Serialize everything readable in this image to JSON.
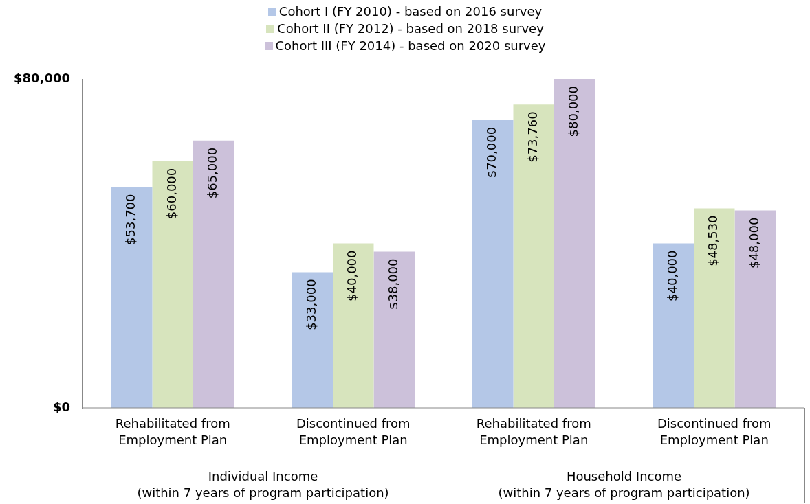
{
  "chart_data": {
    "type": "bar",
    "categories": [
      "Rehabilitated from Employment Plan",
      "Discontinued from Employment Plan",
      "Rehabilitated from Employment Plan",
      "Discontinued from Employment Plan"
    ],
    "series": [
      {
        "name": "Cohort I (FY 2010) - based on 2016 survey",
        "color": "#b4c7e7",
        "values": [
          53700,
          33000,
          70000,
          40000
        ],
        "value_labels": [
          "$53,700",
          "$33,000",
          "$70,000",
          "$40,000"
        ]
      },
      {
        "name": "Cohort II (FY 2012) - based on 2018 survey",
        "color": "#d7e4bd",
        "values": [
          60000,
          40000,
          73760,
          48530
        ],
        "value_labels": [
          "$60,000",
          "$40,000",
          "$73,760",
          "$48,530"
        ]
      },
      {
        "name": "Cohort III (FY 2014) - based on 2020 survey",
        "color": "#ccc1da",
        "values": [
          65000,
          38000,
          80000,
          48000
        ],
        "value_labels": [
          "$65,000",
          "$38,000",
          "$80,000",
          "$48,000"
        ]
      }
    ],
    "ylim": [
      0,
      80000
    ],
    "yticks": [
      {
        "value": 0,
        "label": "$0"
      },
      {
        "value": 80000,
        "label": "$80,000"
      }
    ],
    "grid": false,
    "legend": "top",
    "annotations": [
      "Individual Income\n(within 7 years of program participation)",
      "Household Income\n(within 7 years of program participation)"
    ]
  }
}
